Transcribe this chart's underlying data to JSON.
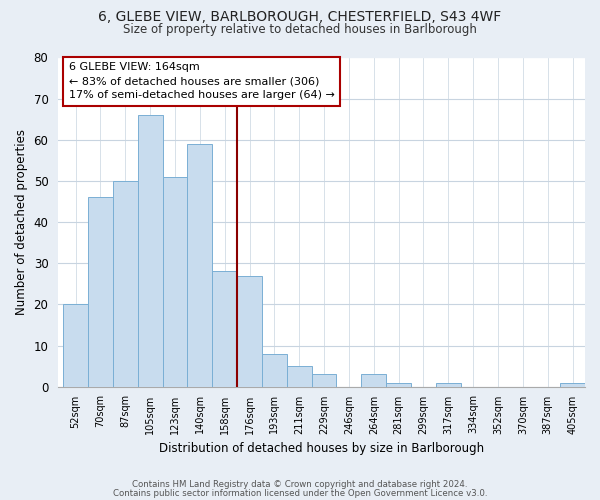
{
  "title": "6, GLEBE VIEW, BARLBOROUGH, CHESTERFIELD, S43 4WF",
  "subtitle": "Size of property relative to detached houses in Barlborough",
  "xlabel": "Distribution of detached houses by size in Barlborough",
  "ylabel": "Number of detached properties",
  "bin_labels": [
    "52sqm",
    "70sqm",
    "87sqm",
    "105sqm",
    "123sqm",
    "140sqm",
    "158sqm",
    "176sqm",
    "193sqm",
    "211sqm",
    "229sqm",
    "246sqm",
    "264sqm",
    "281sqm",
    "299sqm",
    "317sqm",
    "334sqm",
    "352sqm",
    "370sqm",
    "387sqm",
    "405sqm"
  ],
  "bar_heights": [
    20,
    46,
    50,
    66,
    51,
    59,
    28,
    27,
    8,
    5,
    3,
    0,
    3,
    1,
    0,
    1,
    0,
    0,
    0,
    0,
    1
  ],
  "bar_color": "#c8dcee",
  "bar_edge_color": "#7aafd4",
  "property_line_color": "#8b0000",
  "annotation_title": "6 GLEBE VIEW: 164sqm",
  "annotation_line1": "← 83% of detached houses are smaller (306)",
  "annotation_line2": "17% of semi-detached houses are larger (64) →",
  "annotation_box_color": "#ffffff",
  "annotation_box_edge": "#aa0000",
  "ylim": [
    0,
    80
  ],
  "yticks": [
    0,
    10,
    20,
    30,
    40,
    50,
    60,
    70,
    80
  ],
  "footnote1": "Contains HM Land Registry data © Crown copyright and database right 2024.",
  "footnote2": "Contains public sector information licensed under the Open Government Licence v3.0.",
  "bg_color": "#e8eef5",
  "plot_bg_color": "#ffffff",
  "grid_color": "#c8d4e0"
}
